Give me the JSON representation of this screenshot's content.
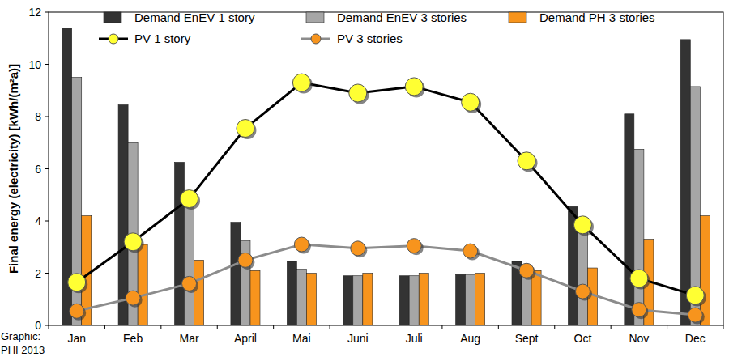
{
  "chart_data": {
    "type": "bar",
    "y_label": "Final energy (electricity) [kWh/(m²a)]",
    "annotations": [
      "Graphic:",
      "PHI 2013"
    ],
    "categories": [
      "Jan",
      "Feb",
      "Mar",
      "April",
      "Mai",
      "Juni",
      "Juli",
      "Aug",
      "Sept",
      "Oct",
      "Nov",
      "Dec"
    ],
    "series": [
      {
        "name": "Demand EnEV 1 story",
        "type": "bar",
        "color": "#333333",
        "values": [
          11.4,
          8.45,
          6.25,
          3.95,
          2.45,
          1.9,
          1.9,
          1.95,
          2.45,
          4.55,
          8.1,
          10.95
        ]
      },
      {
        "name": "Demand EnEV 3 stories",
        "type": "bar",
        "color": "#a6a6a6",
        "values": [
          9.5,
          7.0,
          4.75,
          3.25,
          2.15,
          1.9,
          1.9,
          1.95,
          2.3,
          3.8,
          6.75,
          9.15
        ]
      },
      {
        "name": "Demand PH 3 stories",
        "type": "bar",
        "color": "#f7941d",
        "values": [
          4.2,
          3.1,
          2.5,
          2.1,
          2.0,
          2.0,
          2.0,
          2.0,
          2.1,
          2.2,
          3.3,
          4.2
        ]
      },
      {
        "name": "PV 1 story",
        "type": "line",
        "color": "#000000",
        "marker": "circle",
        "values": [
          1.65,
          3.2,
          4.85,
          7.55,
          9.3,
          8.9,
          9.15,
          8.55,
          6.3,
          3.85,
          1.8,
          1.15
        ]
      },
      {
        "name": "PV 3 stories",
        "type": "line",
        "color": "#8c8c8c",
        "marker": "circle",
        "values": [
          0.55,
          1.05,
          1.6,
          2.5,
          3.1,
          2.95,
          3.05,
          2.85,
          2.1,
          1.3,
          0.6,
          0.4
        ]
      }
    ],
    "ylim": [
      0,
      12
    ],
    "yticks": [
      0,
      2,
      4,
      6,
      8,
      10,
      12
    ],
    "grid": false,
    "legend": "top"
  }
}
